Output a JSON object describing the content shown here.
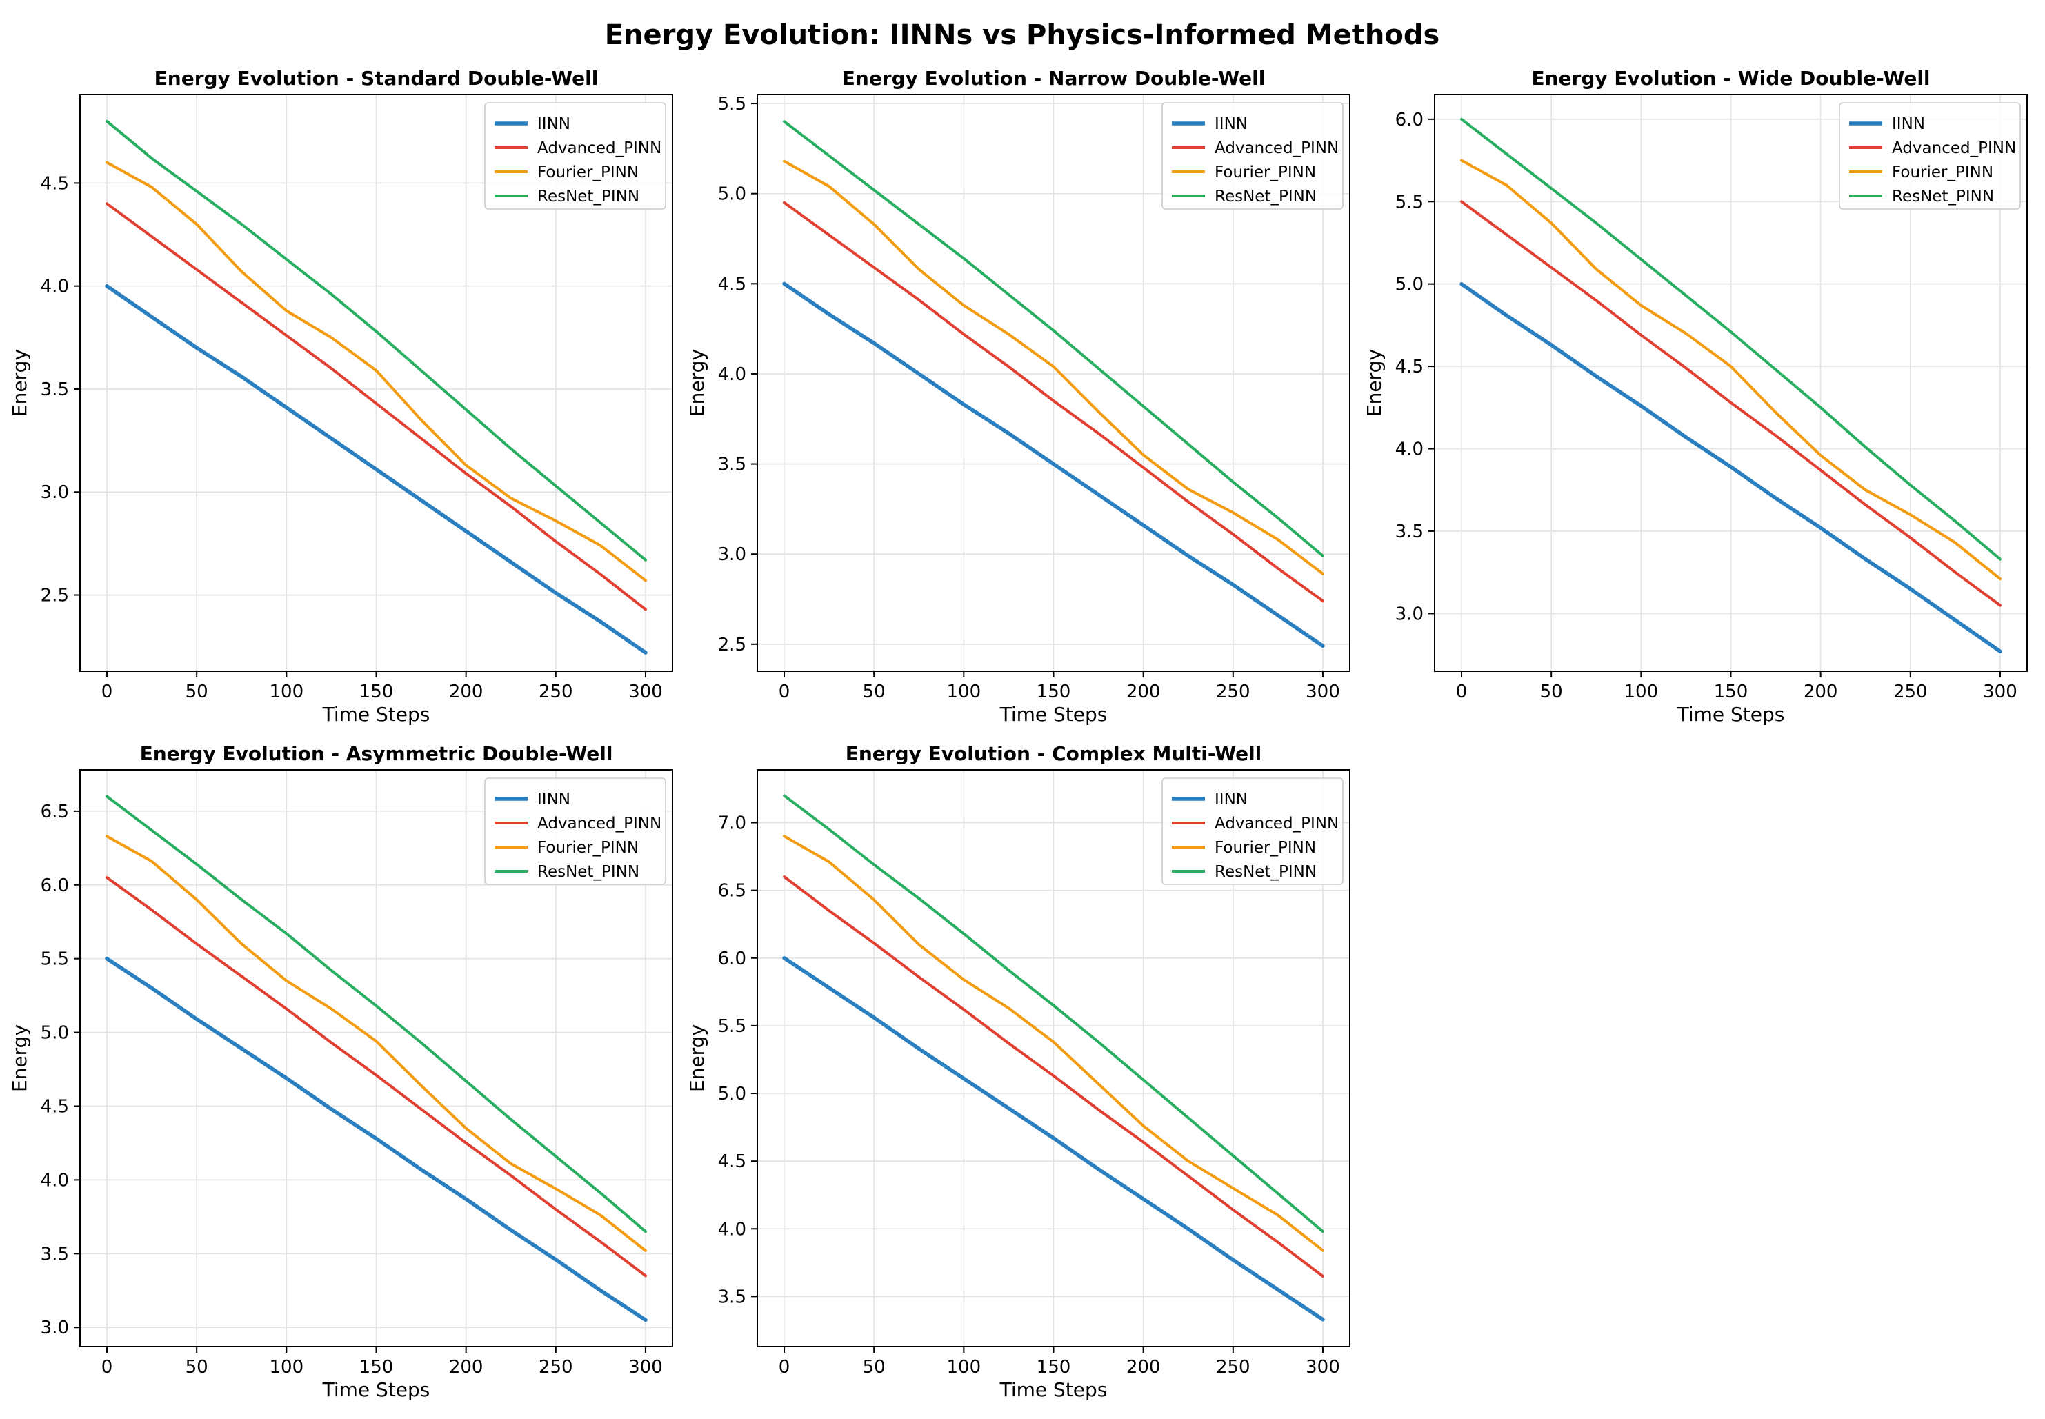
{
  "figure_title": "Energy Evolution: IINNs vs Physics-Informed Methods",
  "series_styles": [
    {
      "name": "IINN",
      "color": "#2a7fc1"
    },
    {
      "name": "Advanced_PINN",
      "color": "#e03f31"
    },
    {
      "name": "Fourier_PINN",
      "color": "#f39c12"
    },
    {
      "name": "ResNet_PINN",
      "color": "#27ae60"
    }
  ],
  "chart_data": [
    {
      "type": "line",
      "title": "Energy Evolution - Standard Double-Well",
      "xlabel": "Time Steps",
      "ylabel": "Energy",
      "xlim": [
        -15,
        315
      ],
      "ylim": [
        2.13,
        4.93
      ],
      "xticks": [
        0,
        50,
        100,
        150,
        200,
        250,
        300
      ],
      "yticks": [
        2.5,
        3.0,
        3.5,
        4.0,
        4.5
      ],
      "grid": true,
      "legend_position": "top-right",
      "x": [
        0,
        25,
        50,
        75,
        100,
        125,
        150,
        175,
        200,
        225,
        250,
        275,
        300
      ],
      "series": [
        {
          "name": "IINN",
          "values": [
            4.0,
            3.85,
            3.7,
            3.56,
            3.41,
            3.26,
            3.11,
            2.96,
            2.81,
            2.66,
            2.51,
            2.37,
            2.22
          ]
        },
        {
          "name": "Advanced_PINN",
          "values": [
            4.4,
            4.24,
            4.08,
            3.92,
            3.76,
            3.6,
            3.43,
            3.26,
            3.09,
            2.93,
            2.76,
            2.6,
            2.43
          ]
        },
        {
          "name": "Fourier_PINN",
          "values": [
            4.6,
            4.48,
            4.3,
            4.07,
            3.88,
            3.75,
            3.59,
            3.35,
            3.13,
            2.97,
            2.86,
            2.74,
            2.57
          ]
        },
        {
          "name": "ResNet_PINN",
          "values": [
            4.8,
            4.62,
            4.46,
            4.3,
            4.13,
            3.96,
            3.78,
            3.59,
            3.4,
            3.21,
            3.03,
            2.85,
            2.67
          ]
        }
      ]
    },
    {
      "type": "line",
      "title": "Energy Evolution - Narrow Double-Well",
      "xlabel": "Time Steps",
      "ylabel": "Energy",
      "xlim": [
        -15,
        315
      ],
      "ylim": [
        2.35,
        5.55
      ],
      "xticks": [
        0,
        50,
        100,
        150,
        200,
        250,
        300
      ],
      "yticks": [
        2.5,
        3.0,
        3.5,
        4.0,
        4.5,
        5.0,
        5.5
      ],
      "grid": true,
      "legend_position": "top-right",
      "x": [
        0,
        25,
        50,
        75,
        100,
        125,
        150,
        175,
        200,
        225,
        250,
        275,
        300
      ],
      "series": [
        {
          "name": "IINN",
          "values": [
            4.5,
            4.33,
            4.17,
            4.0,
            3.83,
            3.67,
            3.5,
            3.33,
            3.16,
            2.99,
            2.83,
            2.66,
            2.49
          ]
        },
        {
          "name": "Advanced_PINN",
          "values": [
            4.95,
            4.77,
            4.59,
            4.41,
            4.22,
            4.04,
            3.85,
            3.67,
            3.48,
            3.29,
            3.11,
            2.92,
            2.74
          ]
        },
        {
          "name": "Fourier_PINN",
          "values": [
            5.18,
            5.04,
            4.83,
            4.58,
            4.38,
            4.22,
            4.04,
            3.79,
            3.55,
            3.36,
            3.23,
            3.08,
            2.89
          ]
        },
        {
          "name": "ResNet_PINN",
          "values": [
            5.4,
            5.21,
            5.02,
            4.83,
            4.64,
            4.44,
            4.24,
            4.03,
            3.82,
            3.61,
            3.4,
            3.2,
            2.99
          ]
        }
      ]
    },
    {
      "type": "line",
      "title": "Energy Evolution - Wide Double-Well",
      "xlabel": "Time Steps",
      "ylabel": "Energy",
      "xlim": [
        -15,
        315
      ],
      "ylim": [
        2.65,
        6.15
      ],
      "xticks": [
        0,
        50,
        100,
        150,
        200,
        250,
        300
      ],
      "yticks": [
        3.0,
        3.5,
        4.0,
        4.5,
        5.0,
        5.5,
        6.0
      ],
      "grid": true,
      "legend_position": "top-right",
      "x": [
        0,
        25,
        50,
        75,
        100,
        125,
        150,
        175,
        200,
        225,
        250,
        275,
        300
      ],
      "series": [
        {
          "name": "IINN",
          "values": [
            5.0,
            4.81,
            4.63,
            4.44,
            4.26,
            4.07,
            3.89,
            3.7,
            3.52,
            3.33,
            3.15,
            2.96,
            2.77
          ]
        },
        {
          "name": "Advanced_PINN",
          "values": [
            5.5,
            5.3,
            5.1,
            4.9,
            4.69,
            4.49,
            4.28,
            4.08,
            3.87,
            3.66,
            3.46,
            3.25,
            3.05
          ]
        },
        {
          "name": "Fourier_PINN",
          "values": [
            5.75,
            5.6,
            5.37,
            5.09,
            4.87,
            4.7,
            4.5,
            4.22,
            3.96,
            3.75,
            3.6,
            3.43,
            3.21
          ]
        },
        {
          "name": "ResNet_PINN",
          "values": [
            6.0,
            5.79,
            5.58,
            5.37,
            5.15,
            4.93,
            4.71,
            4.48,
            4.25,
            4.01,
            3.78,
            3.56,
            3.33
          ]
        }
      ]
    },
    {
      "type": "line",
      "title": "Energy Evolution - Asymmetric Double-Well",
      "xlabel": "Time Steps",
      "ylabel": "Energy",
      "xlim": [
        -15,
        315
      ],
      "ylim": [
        2.87,
        6.78
      ],
      "xticks": [
        0,
        50,
        100,
        150,
        200,
        250,
        300
      ],
      "yticks": [
        3.0,
        3.5,
        4.0,
        4.5,
        5.0,
        5.5,
        6.0,
        6.5
      ],
      "grid": true,
      "legend_position": "top-right",
      "x": [
        0,
        25,
        50,
        75,
        100,
        125,
        150,
        175,
        200,
        225,
        250,
        275,
        300
      ],
      "series": [
        {
          "name": "IINN",
          "values": [
            5.5,
            5.3,
            5.09,
            4.89,
            4.69,
            4.48,
            4.28,
            4.07,
            3.87,
            3.66,
            3.46,
            3.25,
            3.05
          ]
        },
        {
          "name": "Advanced_PINN",
          "values": [
            6.05,
            5.83,
            5.6,
            5.38,
            5.16,
            4.93,
            4.71,
            4.48,
            4.25,
            4.03,
            3.8,
            3.58,
            3.35
          ]
        },
        {
          "name": "Fourier_PINN",
          "values": [
            6.33,
            6.16,
            5.9,
            5.6,
            5.35,
            5.16,
            4.94,
            4.64,
            4.35,
            4.11,
            3.94,
            3.76,
            3.52
          ]
        },
        {
          "name": "ResNet_PINN",
          "values": [
            6.6,
            6.37,
            6.14,
            5.9,
            5.67,
            5.42,
            5.18,
            4.93,
            4.67,
            4.41,
            4.16,
            3.91,
            3.65
          ]
        }
      ]
    },
    {
      "type": "line",
      "title": "Energy Evolution - Complex Multi-Well",
      "xlabel": "Time Steps",
      "ylabel": "Energy",
      "xlim": [
        -15,
        315
      ],
      "ylim": [
        3.13,
        7.39
      ],
      "xticks": [
        0,
        50,
        100,
        150,
        200,
        250,
        300
      ],
      "yticks": [
        3.5,
        4.0,
        4.5,
        5.0,
        5.5,
        6.0,
        6.5,
        7.0
      ],
      "grid": true,
      "legend_position": "top-right",
      "x": [
        0,
        25,
        50,
        75,
        100,
        125,
        150,
        175,
        200,
        225,
        250,
        275,
        300
      ],
      "series": [
        {
          "name": "IINN",
          "values": [
            6.0,
            5.78,
            5.56,
            5.33,
            5.11,
            4.89,
            4.67,
            4.44,
            4.22,
            4.0,
            3.77,
            3.55,
            3.33
          ]
        },
        {
          "name": "Advanced_PINN",
          "values": [
            6.6,
            6.35,
            6.11,
            5.86,
            5.62,
            5.37,
            5.13,
            4.88,
            4.64,
            4.39,
            4.14,
            3.9,
            3.65
          ]
        },
        {
          "name": "Fourier_PINN",
          "values": [
            6.9,
            6.71,
            6.43,
            6.1,
            5.84,
            5.63,
            5.38,
            5.07,
            4.76,
            4.5,
            4.3,
            4.1,
            3.84
          ]
        },
        {
          "name": "ResNet_PINN",
          "values": [
            7.2,
            6.95,
            6.69,
            6.44,
            6.18,
            5.91,
            5.65,
            5.38,
            5.1,
            4.82,
            4.54,
            4.26,
            3.98
          ]
        }
      ]
    }
  ]
}
